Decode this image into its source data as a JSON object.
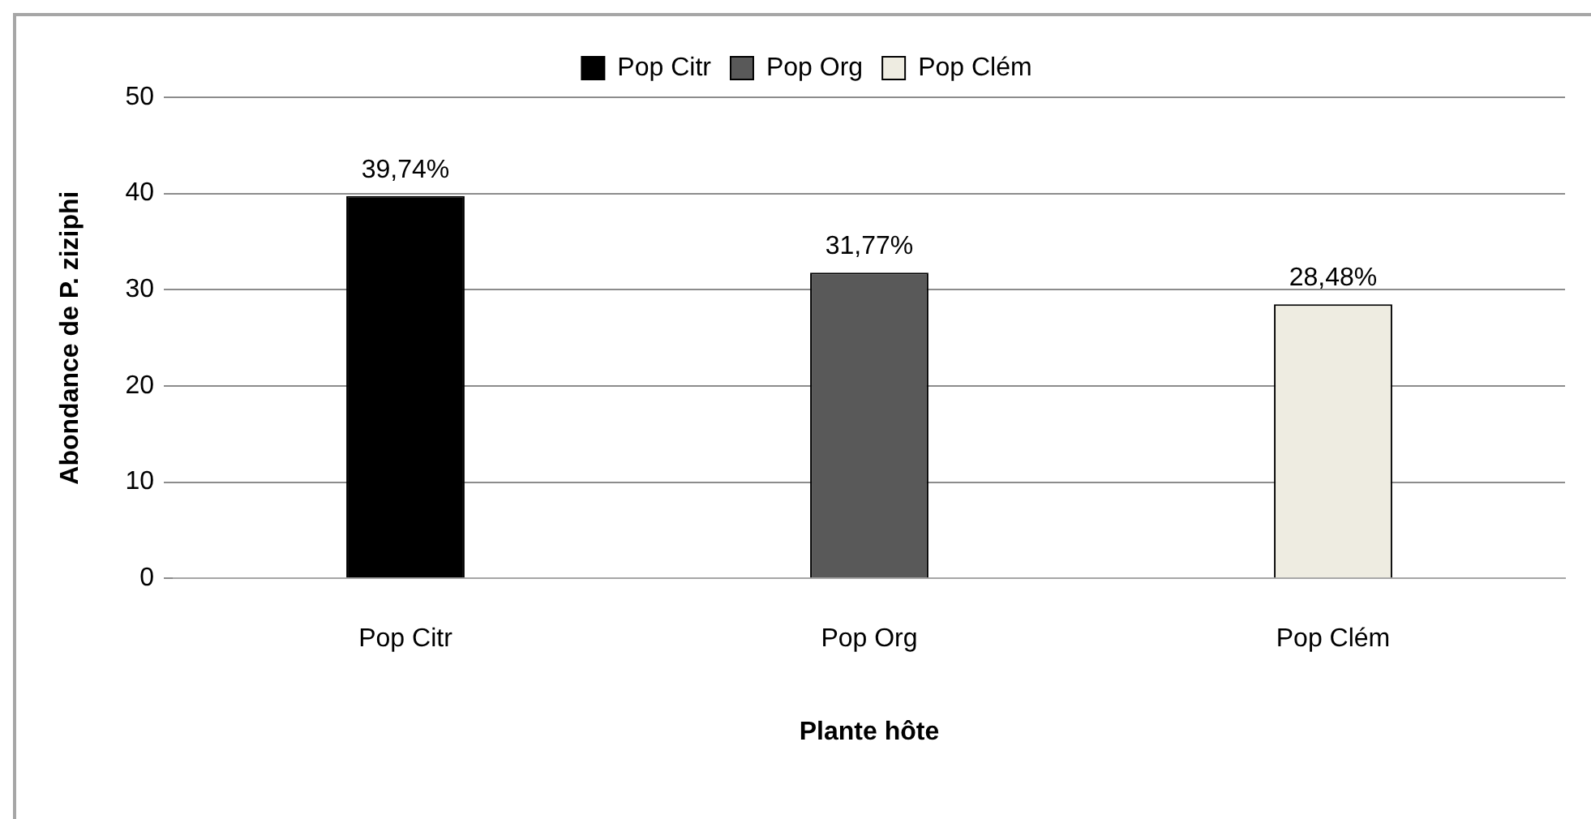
{
  "chart_data": {
    "type": "bar",
    "xlabel": "Plante hôte",
    "ylabel": "Abondance de P. ziziphi",
    "categories": [
      "Pop Citr",
      "Pop Org",
      "Pop Clém"
    ],
    "series": [
      {
        "name": "Pop Citr",
        "color": "#000000",
        "values": [
          39.74,
          null,
          null
        ],
        "value_labels": [
          "39,74%",
          null,
          null
        ]
      },
      {
        "name": "Pop Org",
        "color": "#595959",
        "values": [
          null,
          31.77,
          null
        ],
        "value_labels": [
          null,
          "31,77%",
          null
        ]
      },
      {
        "name": "Pop Clém",
        "color": "#eeece1",
        "values": [
          null,
          null,
          28.48
        ],
        "value_labels": [
          null,
          null,
          "28,48%"
        ]
      }
    ],
    "ylim": [
      0,
      50
    ],
    "yticks": [
      0,
      10,
      20,
      30,
      40,
      50
    ],
    "grid": "y",
    "legend": "top"
  }
}
